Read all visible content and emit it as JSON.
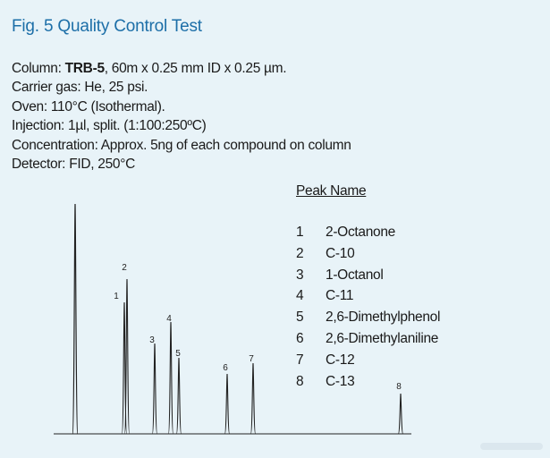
{
  "figure": {
    "title": "Fig. 5 Quality Control Test"
  },
  "conditions": [
    {
      "label": "Column: ",
      "bold": "TRB-5",
      "rest": ", 60m x 0.25 mm ID x 0.25 µm."
    },
    {
      "label": "Carrier gas: He, 25 psi.",
      "bold": "",
      "rest": ""
    },
    {
      "label": "Oven: 110°C (Isothermal).",
      "bold": "",
      "rest": ""
    },
    {
      "label": "Injection: 1µl, split. (1:100:250ºC)",
      "bold": "",
      "rest": ""
    },
    {
      "label": "Concentration: Approx. 5ng of each compound on column",
      "bold": "",
      "rest": ""
    },
    {
      "label": "Detector: FID, 250°C",
      "bold": "",
      "rest": ""
    }
  ],
  "legend": {
    "title": "Peak Name",
    "items": [
      {
        "num": "1",
        "name": "2-Octanone"
      },
      {
        "num": "2",
        "name": "C-10"
      },
      {
        "num": "3",
        "name": "1-Octanol"
      },
      {
        "num": "4",
        "name": "C-11"
      },
      {
        "num": "5",
        "name": "2,6-Dimethylphenol"
      },
      {
        "num": "6",
        "name": "2,6-Dimethylaniline"
      },
      {
        "num": "7",
        "name": "C-12"
      },
      {
        "num": "8",
        "name": "C-13"
      }
    ]
  },
  "chart_data": {
    "type": "line",
    "title": "Fig. 5 Quality Control Test",
    "xlabel": "",
    "ylabel": "",
    "axes_shown": false,
    "grid": false,
    "line_color": "#222222",
    "peak_labels": [
      "1",
      "2",
      "3",
      "4",
      "5",
      "6",
      "7",
      "8"
    ],
    "note": ""
  }
}
